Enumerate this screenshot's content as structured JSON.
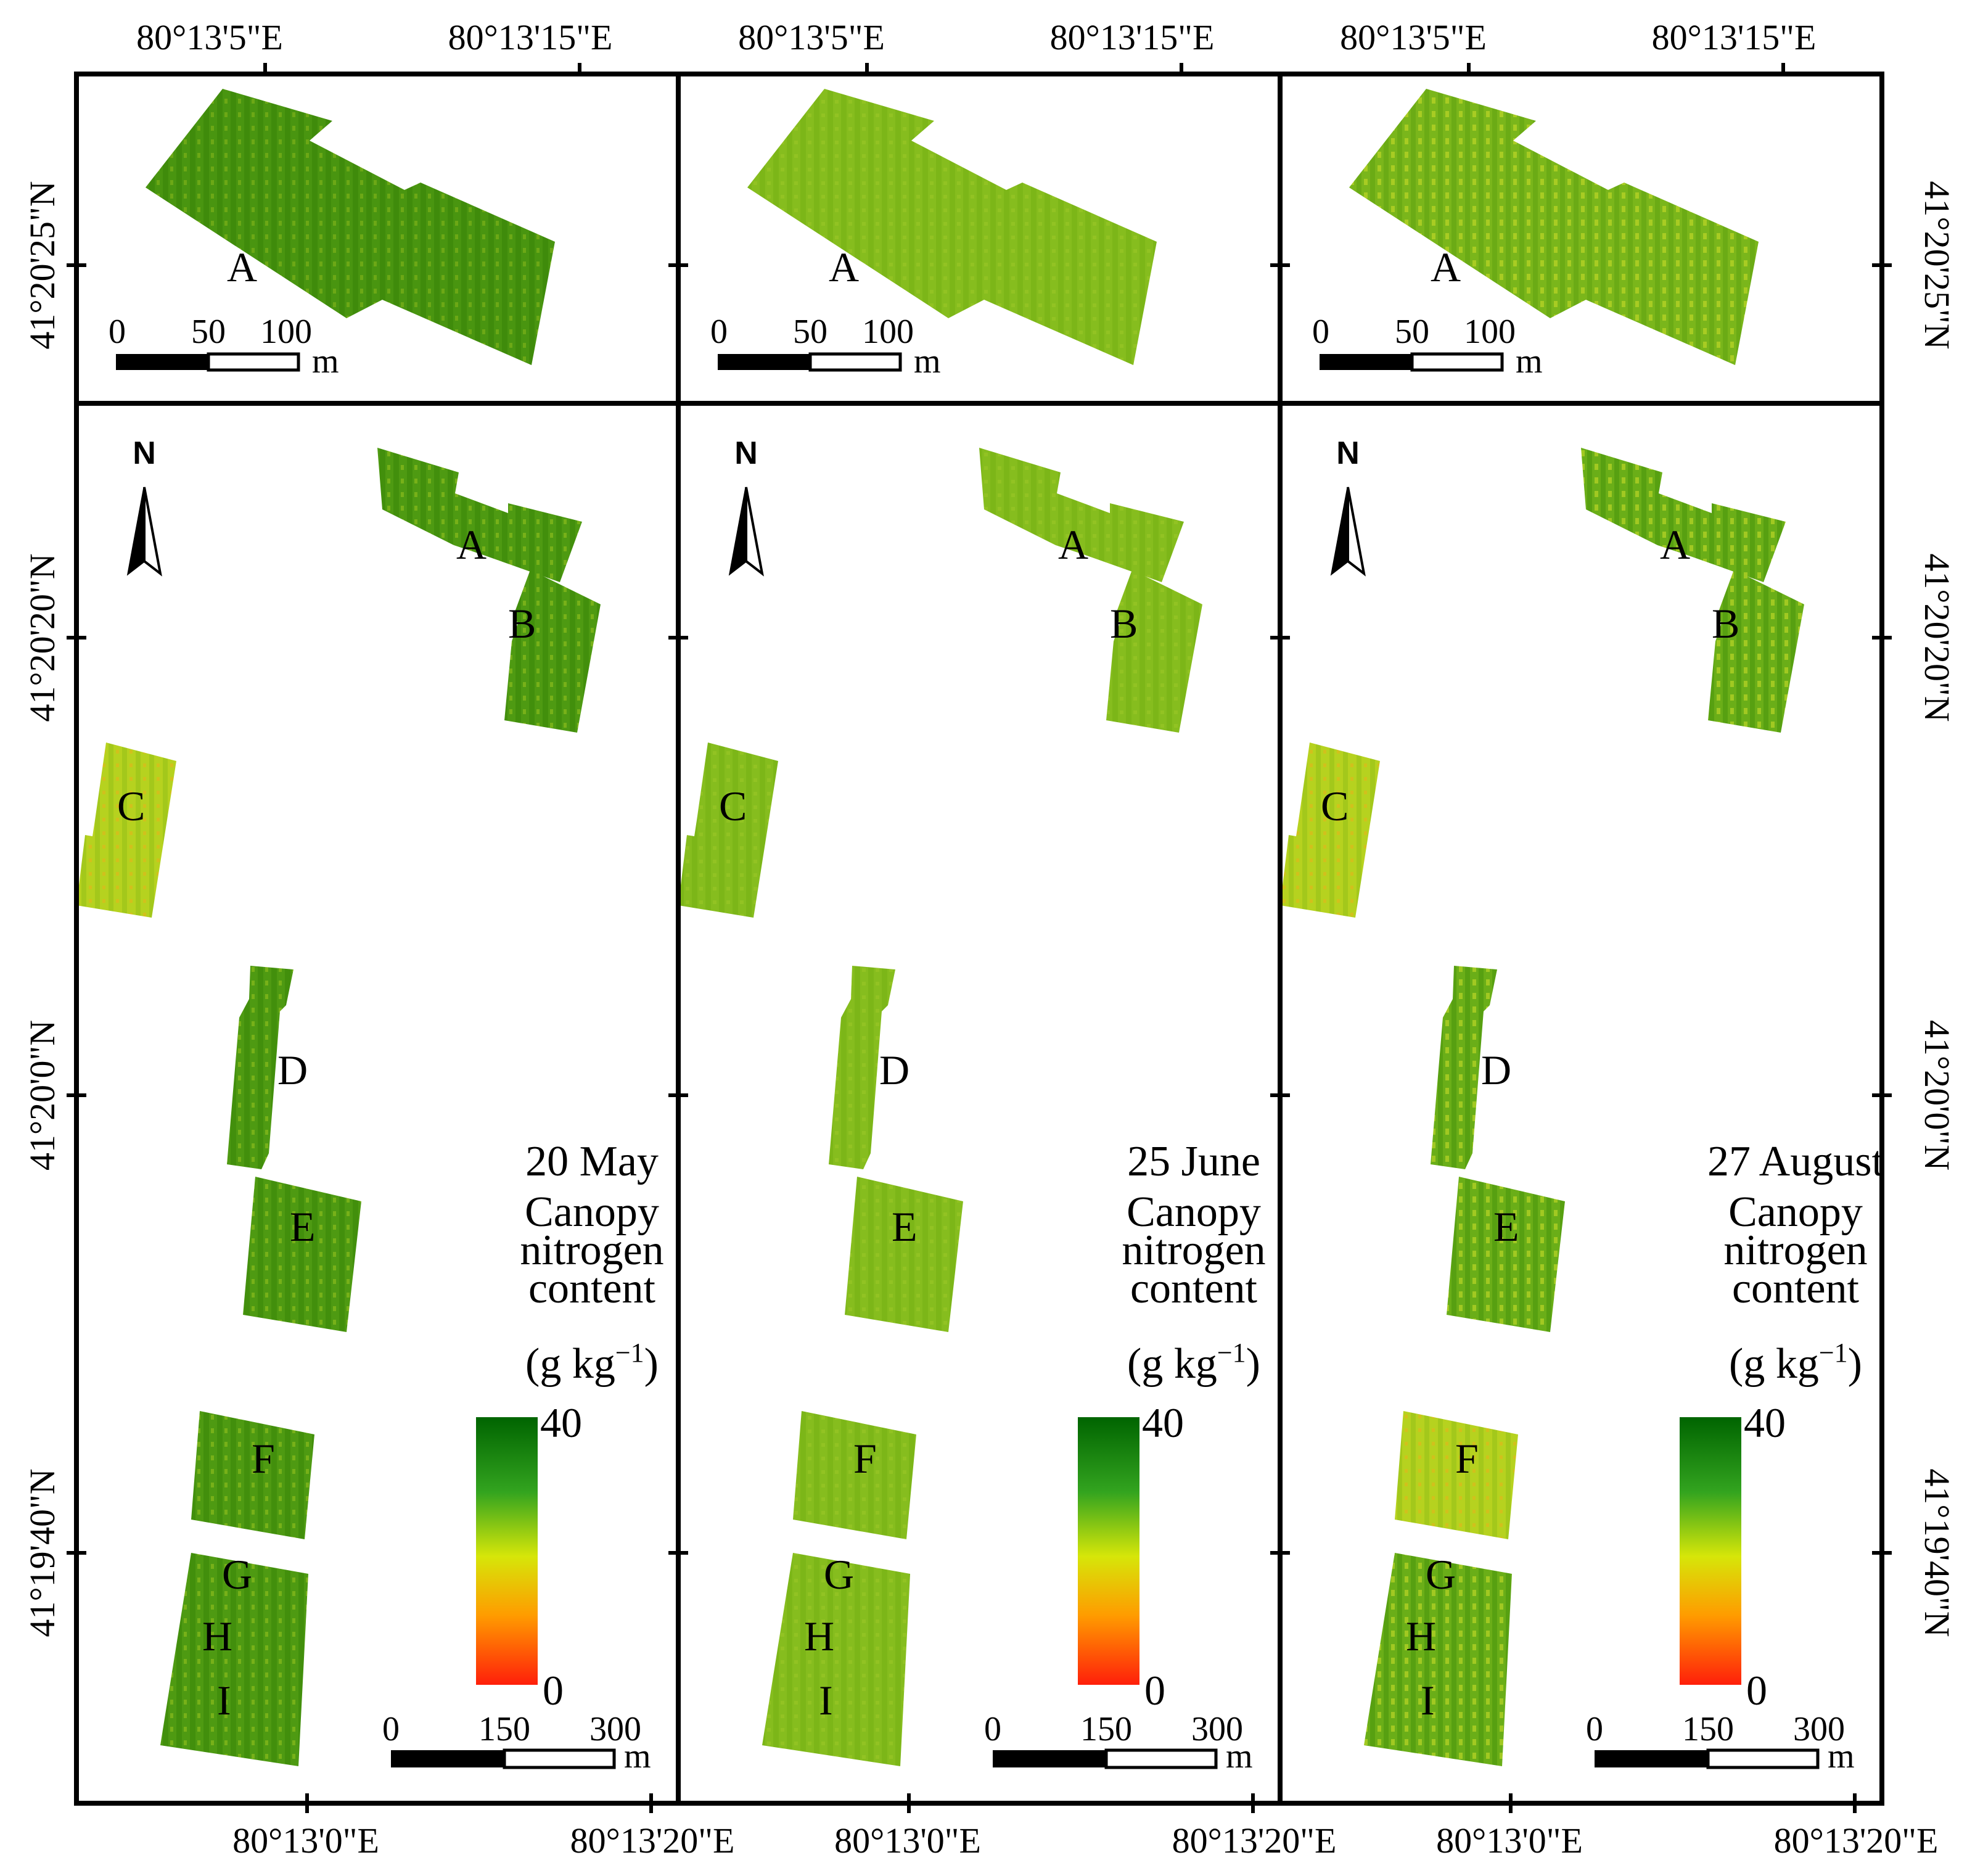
{
  "colors": {
    "ramp_high": "#006400",
    "ramp_mid_high": "#33a41f",
    "ramp_mid": "#d6e609",
    "ramp_mid_low": "#ff9c00",
    "ramp_low": "#ff1f0a",
    "frame": "#000000"
  },
  "axes": {
    "top_lon": [
      "80°13'5\"E",
      "80°13'15\"E"
    ],
    "bottom_lon": [
      "80°13'0\"E",
      "80°13'20\"E"
    ],
    "left_lat_inset": "41°20'25\"N",
    "left_lat_main": [
      "41°20'20\"N",
      "41°20'0\"N",
      "41°19'40\"N"
    ],
    "right_lat_inset": "41°20'25\"N",
    "right_lat_main": [
      "41°20'20\"N",
      "41°20'0\"N",
      "41°19'40\"N"
    ]
  },
  "inset_scale": {
    "ticks": [
      "0",
      "50",
      "100"
    ],
    "unit": "m"
  },
  "main_scale": {
    "ticks": [
      "0",
      "150",
      "300"
    ],
    "unit": "m"
  },
  "field_labels": {
    "A": "A",
    "B": "B",
    "C": "C",
    "D": "D",
    "E": "E",
    "F": "F",
    "G": "G",
    "H": "H",
    "I": "I"
  },
  "north_arrow": {
    "letter": "N",
    "icon": "north-arrow-icon"
  },
  "legend": {
    "title_lines": [
      "Canopy",
      "nitrogen",
      "content"
    ],
    "unit_prefix": "(g kg",
    "unit_sup": "−1",
    "unit_suffix": ")",
    "max": "40",
    "min": "0"
  },
  "panels": [
    {
      "date": "20 May",
      "tone": "dark"
    },
    {
      "date": "25 June",
      "tone": "light"
    },
    {
      "date": "27 August",
      "tone": "mixed"
    }
  ]
}
